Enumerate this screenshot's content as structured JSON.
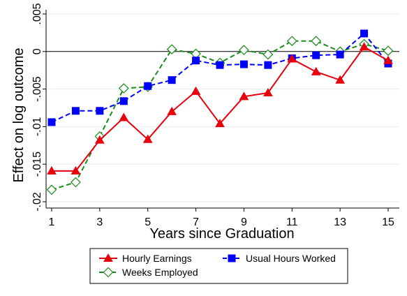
{
  "chart_data": {
    "type": "line",
    "xlabel": "Years since Graduation",
    "ylabel": "Effect on log outcome",
    "xlim": [
      1,
      15
    ],
    "ylim": [
      -0.02,
      0.005
    ],
    "x_ticks": [
      1,
      3,
      5,
      7,
      9,
      11,
      13,
      15
    ],
    "x_tick_labels": [
      "1",
      "3",
      "5",
      "7",
      "9",
      "11",
      "13",
      "15"
    ],
    "y_ticks": [
      0.005,
      0,
      -0.005,
      -0.01,
      -0.015,
      -0.02
    ],
    "y_tick_labels": [
      ".005",
      "0",
      "-.005",
      "-.01",
      "-.015",
      "-.02"
    ],
    "grid": true,
    "reference_line": 0,
    "x": [
      1,
      2,
      3,
      4,
      5,
      6,
      7,
      8,
      9,
      10,
      11,
      12,
      13,
      14,
      15
    ],
    "series": [
      {
        "name": "Hourly Earnings",
        "color": "#e8000b",
        "marker": "triangle",
        "line_style": "solid",
        "values": [
          -0.0159,
          -0.0159,
          -0.0118,
          -0.0088,
          -0.0117,
          -0.008,
          -0.0053,
          -0.0096,
          -0.006,
          -0.0055,
          -0.001,
          -0.0027,
          -0.0038,
          0.0006,
          -0.0012
        ]
      },
      {
        "name": "Usual Hours Worked",
        "color": "#0000ff",
        "marker": "square",
        "line_style": "dashed",
        "values": [
          -0.0094,
          -0.0079,
          -0.0079,
          -0.0066,
          -0.0046,
          -0.0038,
          -0.0012,
          -0.0018,
          -0.0017,
          -0.0018,
          -0.0009,
          -0.0005,
          -0.0004,
          0.0024,
          -0.0016
        ]
      },
      {
        "name": "Weeks Employed",
        "color": "#1a8a1a",
        "marker": "diamond",
        "line_style": "dashed",
        "values": [
          -0.0184,
          -0.0174,
          -0.0113,
          -0.0049,
          -0.0047,
          0.0003,
          -0.0003,
          -0.0015,
          0.0002,
          -0.0004,
          0.0014,
          0.0014,
          0.0,
          0.001,
          0.0001
        ]
      }
    ],
    "legend": {
      "placement": "bottom",
      "entries": [
        "Hourly Earnings",
        "Usual Hours Worked",
        "Weeks Employed"
      ]
    }
  }
}
